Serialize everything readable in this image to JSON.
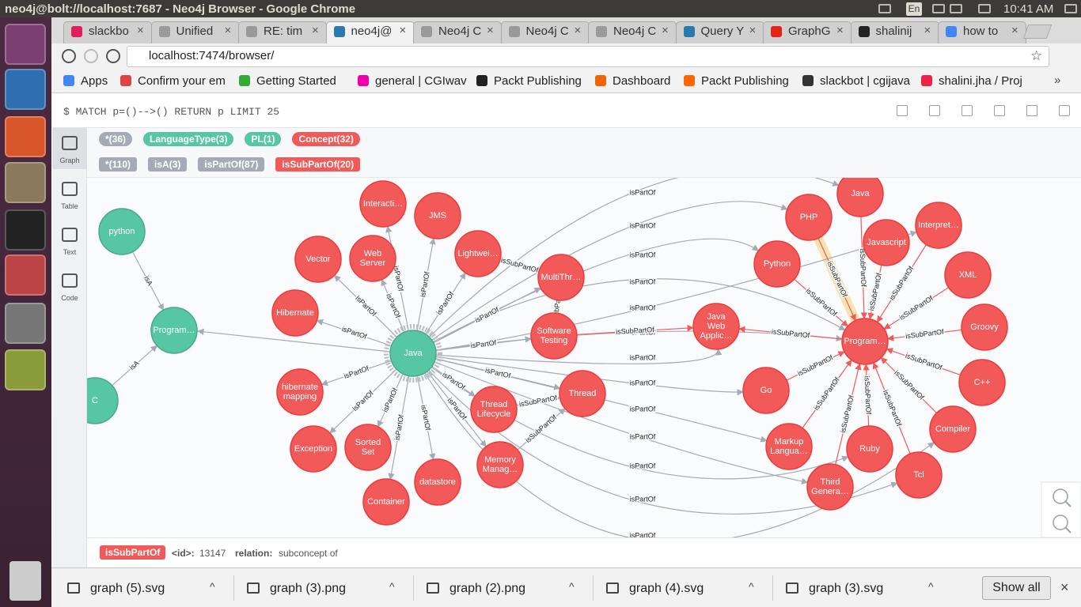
{
  "window": {
    "title": "neo4j@bolt://localhost:7687 - Neo4j Browser - Google Chrome",
    "keyboard": "En",
    "clock": "10:41 AM"
  },
  "tabs": [
    "slackbo",
    "Unified",
    "RE: tim",
    "neo4j@",
    "Neo4j C",
    "Neo4j C",
    "Neo4j C",
    "Query Y",
    "GraphG",
    "shalinij",
    "how to"
  ],
  "address": "localhost:7474/browser/",
  "bookmarks": [
    "Apps",
    "Confirm your em",
    "Getting Started",
    "general | CGIwav",
    "Packt Publishing",
    "Dashboard",
    "Packt Publishing",
    "slackbot | cgijava",
    "shalini.jha / Proj"
  ],
  "query": "$ MATCH p=()-->() RETURN p LIMIT 25",
  "sidebar": [
    "Graph",
    "Table",
    "Text",
    "Code"
  ],
  "node_labels": [
    "*(36)",
    "LanguageType(3)",
    "PL(1)",
    "Concept(32)"
  ],
  "relationship_types": [
    "*(110)",
    "isA(3)",
    "isPartOf(87)",
    "isSubPartOf(20)"
  ],
  "nodes": [
    "python",
    "Program…",
    "C",
    "Java",
    "Interacti…",
    "JMS",
    "Vector",
    "Web Server",
    "Lightwei…",
    "MultiThr…",
    "Hibernate",
    "Software Testing",
    "Java Web Applic…",
    "hibernate mapping",
    "Thread Lifecycle",
    "Thread",
    "Exception",
    "Sorted Set",
    "Memory Manag…",
    "datastore",
    "Container",
    "PHP",
    "Java",
    "Javascript",
    "Interpret…",
    "Python",
    "XML",
    "Program…",
    "Groovy",
    "Go",
    "C++",
    "Compiler",
    "Markup Langua…",
    "Ruby",
    "Tcl",
    "Third Genera…"
  ],
  "edges": [
    "isA",
    "isA",
    "isPartOf",
    "isPartOf",
    "isPartOf",
    "isPartOf",
    "isPartOf",
    "isPartOf",
    "isPartOf",
    "isPartOf",
    "isPartOf",
    "isPartOf",
    "isPartOf",
    "isPartOf",
    "isPartOf",
    "isPartOf",
    "isPartOf",
    "isPartOf",
    "isPartOf",
    "isPartOf",
    "isPartOf",
    "isPartOf",
    "isPartOf",
    "isPartOf",
    "isPartOf",
    "isPartOf",
    "isPartOf",
    "isPartOf",
    "isPartOf",
    "isPartOf",
    "isPartOf",
    "isSubPartOf",
    "isSubPartOf",
    "isSubPartOf",
    "isSubPartOf",
    "isSubPartOf",
    "isSubPartOf",
    "isSubPartOf",
    "isSubPartOf",
    "isSubPartOf",
    "isSubPartOf",
    "isSubPartOf",
    "isSubPartOf",
    "isSubPartOf",
    "isSubPartOf",
    "isSubPartOf",
    "isSubPartOf",
    "isSubPartOf",
    "isSubPartOf",
    "isSubPartOf",
    "isSubPartOf"
  ],
  "status": {
    "type": "isSubPartOf",
    "id_key": "<id>:",
    "id": 13147,
    "relation_key": "relation:",
    "relation": "subconcept of"
  },
  "downloads": [
    "graph (5).svg",
    "graph (3).png",
    "graph (2).png",
    "graph (4).svg",
    "graph (3).svg"
  ],
  "show_all": "Show all"
}
